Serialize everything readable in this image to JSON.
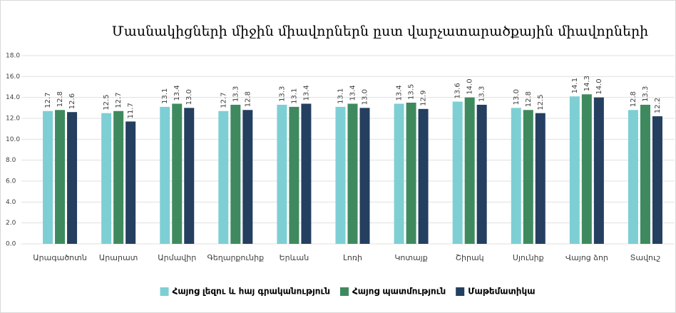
{
  "chart_data": {
    "type": "bar",
    "title": "Մասնակիցների միջին միավորներն ըստ վարչատարածքային  միավորների",
    "categories": [
      "Արագածոտն",
      "Արարատ",
      "Արմավիր",
      "Գեղարքունիք",
      "Երևան",
      "Լոռի",
      "Կոտայք",
      "Շիրակ",
      "Սյունիք",
      "Վայոց ձոր",
      "Տավուշ"
    ],
    "series": [
      {
        "name": "Հայոց լեզու և հայ գրականություն",
        "color": "#7ecfd4",
        "values": [
          12.7,
          12.5,
          13.1,
          12.7,
          13.3,
          13.1,
          13.4,
          13.6,
          13.0,
          14.1,
          12.8
        ],
        "value_labels": [
          "12.7",
          "12.5",
          "13.1",
          "12.7",
          "13.3",
          "13.1",
          "13.4",
          "13.6",
          "13.0",
          "14.1",
          "12.8"
        ]
      },
      {
        "name": "Հայոց պատմություն",
        "color": "#3e8a5e",
        "values": [
          12.8,
          12.7,
          13.4,
          13.3,
          13.1,
          13.4,
          13.5,
          14.0,
          12.8,
          14.3,
          13.3
        ],
        "value_labels": [
          "12.8",
          "12.7",
          "13.4",
          "13.3",
          "13.1",
          "13.4",
          "13.5",
          "14.0",
          "12.8",
          "14.3",
          "13.3"
        ]
      },
      {
        "name": "Մաթեմատիկա",
        "color": "#243f60",
        "values": [
          12.6,
          11.7,
          13.0,
          12.8,
          13.4,
          13.0,
          12.9,
          13.3,
          12.5,
          14.0,
          12.2
        ],
        "value_labels": [
          "12.6",
          "11.7",
          "13.0",
          "12.8",
          "13.4",
          "13.0",
          "12.9",
          "13.3",
          "12.5",
          "14.0",
          "12.2"
        ]
      }
    ],
    "ylim": [
      0,
      18
    ],
    "yticks": [
      {
        "value": 0,
        "label": "0.0"
      },
      {
        "value": 2,
        "label": "2.0"
      },
      {
        "value": 4,
        "label": "4.0"
      },
      {
        "value": 6,
        "label": "6.0"
      },
      {
        "value": 8,
        "label": "8.0"
      },
      {
        "value": 10,
        "label": "10.0"
      },
      {
        "value": 12,
        "label": "12.0"
      },
      {
        "value": 14,
        "label": "14.0"
      },
      {
        "value": 16,
        "label": "16.0"
      },
      {
        "value": 18,
        "label": "18.0"
      }
    ],
    "grid": true,
    "legend": "bottom"
  }
}
